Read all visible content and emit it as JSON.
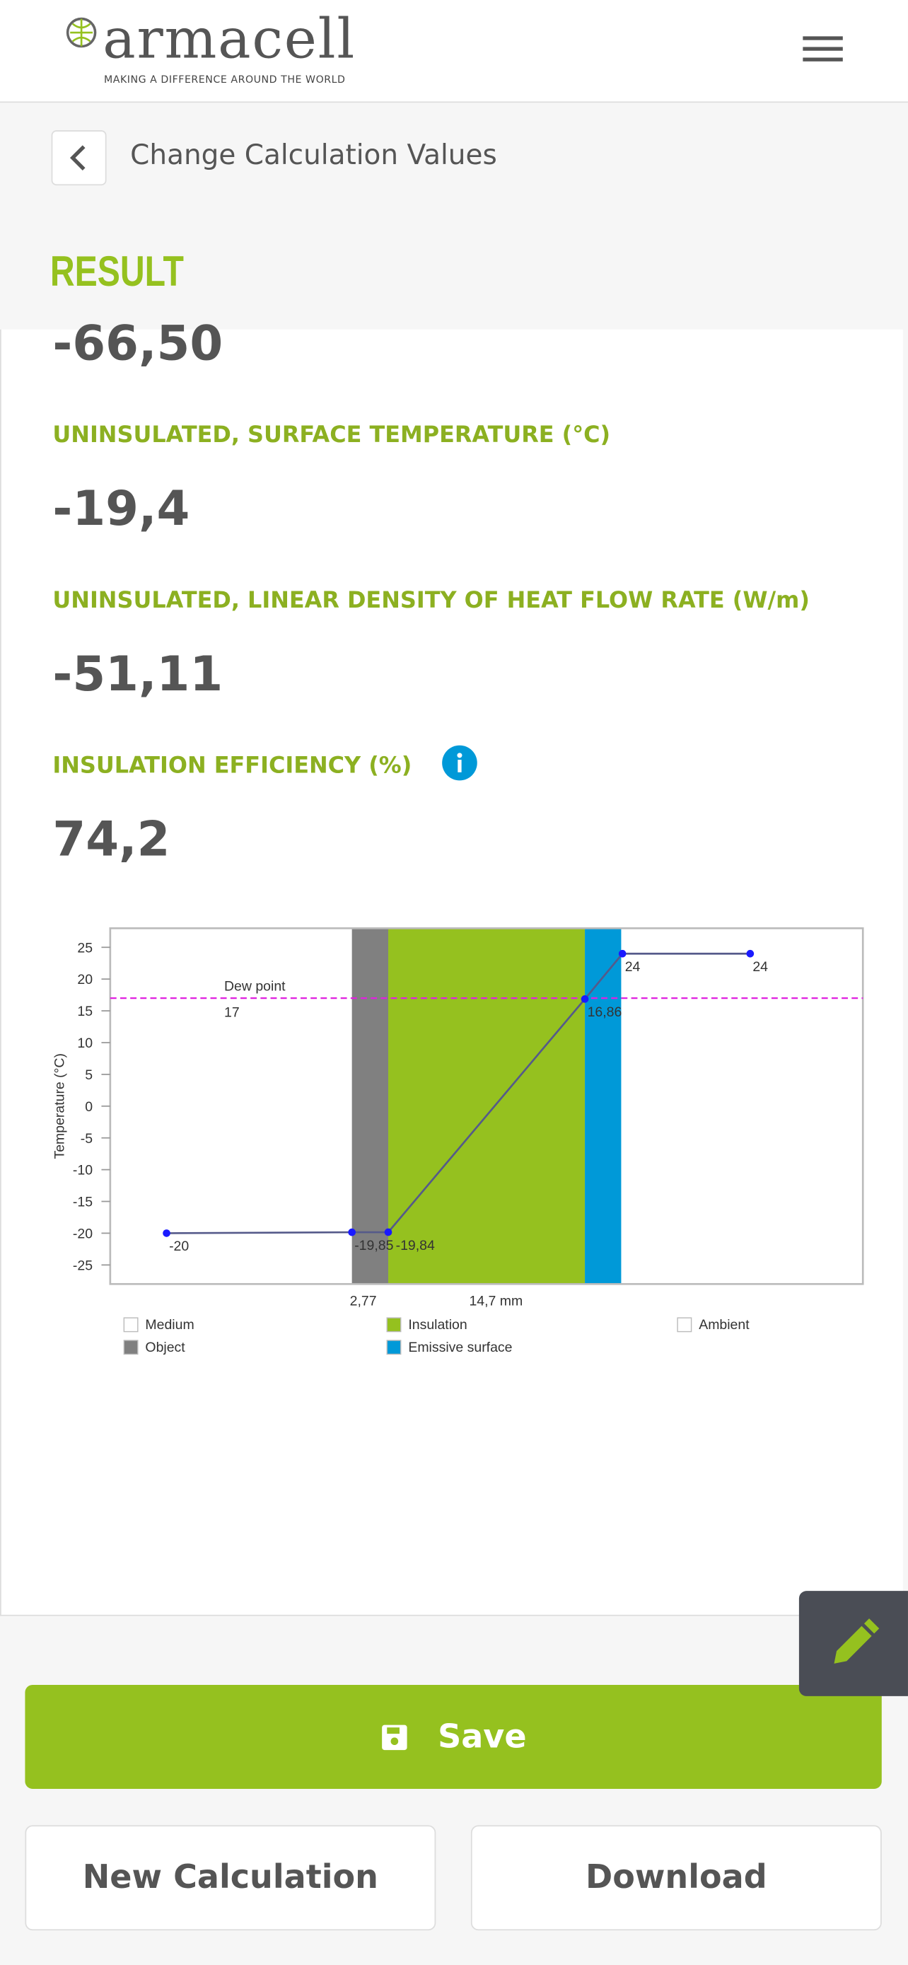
{
  "header": {
    "logo": "armacell",
    "tagline": "MAKING A DIFFERENCE AROUND THE WORLD"
  },
  "nav": {
    "back_label": "Change Calculation Values"
  },
  "section_title": "RESULT",
  "results": [
    {
      "value": "-66,50"
    },
    {
      "label": "UNINSULATED, SURFACE TEMPERATURE (°C)",
      "value": "-19,4"
    },
    {
      "label": "UNINSULATED, LINEAR DENSITY OF HEAT FLOW RATE (W/m)",
      "value": "-51,11"
    },
    {
      "label": "INSULATION EFFICIENCY (%)",
      "value": "74,2"
    }
  ],
  "chart": {
    "type": "line",
    "ylabel": "Temperature (°C)",
    "ylim": [
      -28,
      28
    ],
    "yticks": [
      25,
      20,
      15,
      10,
      5,
      0,
      -5,
      -10,
      -15,
      -20,
      -25
    ],
    "profile": {
      "color": "#1a1aff",
      "line_color": "#555a8a",
      "values": [
        -20,
        -19.85,
        -19.84,
        16.86,
        24,
        24
      ],
      "value_labels": [
        "-20",
        "-19,85",
        "-19,84",
        "16,86",
        "24",
        "24"
      ]
    },
    "dew_point": {
      "label": "Dew point",
      "value": 17,
      "color": "#e020e0"
    },
    "layers": [
      {
        "name": "Medium",
        "color": "#ffffff"
      },
      {
        "name": "Object",
        "color": "#808080"
      },
      {
        "name": "Insulation",
        "color": "#95c11f"
      },
      {
        "name": "Emissive surface",
        "color": "#0099d8"
      },
      {
        "name": "Ambient",
        "color": "#ffffff"
      }
    ],
    "thickness_labels": [
      "2,77",
      "14,7 mm"
    ]
  },
  "buttons": {
    "save": "Save",
    "new": "New Calculation",
    "download": "Download"
  }
}
